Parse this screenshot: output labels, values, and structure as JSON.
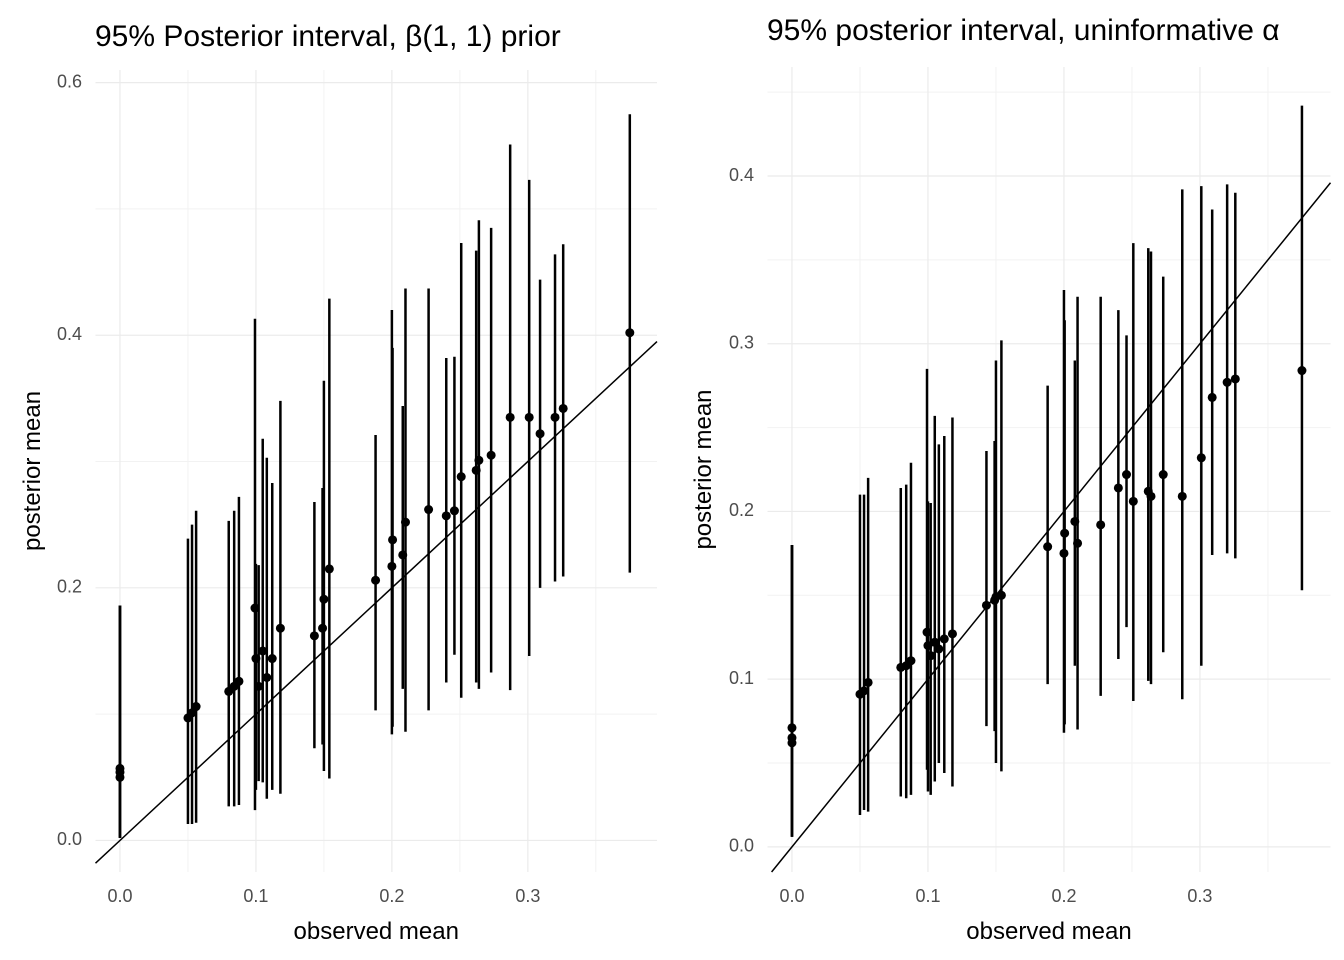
{
  "chart_data": [
    {
      "type": "errorbar",
      "title": "95% Posterior interval, β(1, 1) prior",
      "x_label": "observed mean",
      "y_label": "posterior mean",
      "color": "#000000",
      "grid": true,
      "minor_grid": true,
      "identity_line": true,
      "xlim": [
        -0.018,
        0.395
      ],
      "ylim": [
        -0.025,
        0.61
      ],
      "xticks": [
        {
          "value": 0,
          "label": "0.0"
        },
        0.1,
        0.2,
        0.3
      ],
      "yticks": [
        {
          "value": 0,
          "label": "0.0"
        },
        0.2,
        0.4,
        0.6
      ],
      "x": [
        0,
        0,
        0,
        0.05,
        0.053,
        0.056,
        0.08,
        0.084,
        0.0875,
        0.0993,
        0.1,
        0.102,
        0.105,
        0.108,
        0.112,
        0.118,
        0.143,
        0.149,
        0.15,
        0.154,
        0.188,
        0.2,
        0.2005,
        0.208,
        0.21,
        0.227,
        0.24,
        0.246,
        0.251,
        0.262,
        0.264,
        0.273,
        0.287,
        0.301,
        0.309,
        0.32,
        0.326,
        0.375
      ],
      "values": [
        0.057,
        0.054,
        0.05,
        0.097,
        0.101,
        0.106,
        0.118,
        0.122,
        0.126,
        0.184,
        0.144,
        0.122,
        0.15,
        0.129,
        0.144,
        0.168,
        0.162,
        0.168,
        0.191,
        0.215,
        0.206,
        0.217,
        0.238,
        0.226,
        0.252,
        0.262,
        0.257,
        0.261,
        0.288,
        0.293,
        0.301,
        0.305,
        0.335,
        0.335,
        0.322,
        0.335,
        0.342,
        0.402
      ],
      "lower": [
        0.002,
        0.002,
        0.002,
        0.013,
        0.013,
        0.014,
        0.027,
        0.027,
        0.028,
        0.024,
        0.04,
        0.047,
        0.046,
        0.033,
        0.04,
        0.037,
        0.073,
        0.076,
        0.055,
        0.049,
        0.103,
        0.084,
        0.09,
        0.12,
        0.086,
        0.103,
        0.125,
        0.147,
        0.113,
        0.125,
        0.12,
        0.133,
        0.119,
        0.146,
        0.2,
        0.205,
        0.209,
        0.212
      ],
      "upper": [
        0.186,
        0.186,
        0.186,
        0.239,
        0.25,
        0.261,
        0.253,
        0.261,
        0.272,
        0.413,
        0.219,
        0.218,
        0.318,
        0.303,
        0.283,
        0.348,
        0.268,
        0.279,
        0.364,
        0.429,
        0.321,
        0.42,
        0.39,
        0.344,
        0.437,
        0.437,
        0.382,
        0.383,
        0.473,
        0.467,
        0.491,
        0.485,
        0.551,
        0.523,
        0.444,
        0.464,
        0.472,
        0.575
      ]
    },
    {
      "type": "errorbar",
      "title": "95% posterior interval, uninformative α",
      "x_label": "observed mean",
      "y_label": "posterior mean",
      "color": "#000000",
      "grid": true,
      "minor_grid": true,
      "identity_line": true,
      "xlim": [
        -0.018,
        0.396
      ],
      "ylim": [
        -0.015,
        0.465
      ],
      "xticks": [
        {
          "value": 0,
          "label": "0.0"
        },
        0.1,
        0.2,
        0.3
      ],
      "yticks": [
        {
          "value": 0,
          "label": "0.0"
        },
        0.1,
        0.2,
        0.3,
        0.4
      ],
      "x": [
        0,
        0,
        0,
        0.05,
        0.053,
        0.056,
        0.08,
        0.084,
        0.0875,
        0.0993,
        0.1,
        0.102,
        0.105,
        0.108,
        0.112,
        0.118,
        0.143,
        0.149,
        0.15,
        0.154,
        0.188,
        0.2,
        0.2005,
        0.208,
        0.21,
        0.227,
        0.24,
        0.246,
        0.251,
        0.262,
        0.264,
        0.273,
        0.287,
        0.301,
        0.309,
        0.32,
        0.326,
        0.375
      ],
      "values": [
        0.071,
        0.065,
        0.062,
        0.091,
        0.093,
        0.098,
        0.107,
        0.108,
        0.111,
        0.128,
        0.12,
        0.114,
        0.122,
        0.118,
        0.124,
        0.127,
        0.144,
        0.147,
        0.149,
        0.15,
        0.179,
        0.175,
        0.187,
        0.194,
        0.181,
        0.192,
        0.214,
        0.222,
        0.206,
        0.212,
        0.209,
        0.222,
        0.209,
        0.232,
        0.268,
        0.277,
        0.279,
        0.284
      ],
      "lower": [
        0.006,
        0.006,
        0.006,
        0.019,
        0.022,
        0.021,
        0.03,
        0.029,
        0.031,
        0.046,
        0.033,
        0.031,
        0.039,
        0.05,
        0.044,
        0.036,
        0.072,
        0.069,
        0.05,
        0.045,
        0.097,
        0.068,
        0.073,
        0.108,
        0.07,
        0.09,
        0.112,
        0.131,
        0.087,
        0.099,
        0.097,
        0.116,
        0.088,
        0.108,
        0.174,
        0.175,
        0.172,
        0.153
      ],
      "upper": [
        0.18,
        0.18,
        0.18,
        0.21,
        0.21,
        0.22,
        0.214,
        0.216,
        0.229,
        0.285,
        0.206,
        0.205,
        0.257,
        0.24,
        0.245,
        0.256,
        0.236,
        0.242,
        0.29,
        0.302,
        0.275,
        0.332,
        0.314,
        0.29,
        0.328,
        0.328,
        0.32,
        0.305,
        0.36,
        0.357,
        0.355,
        0.34,
        0.392,
        0.394,
        0.38,
        0.395,
        0.39,
        0.442
      ]
    }
  ]
}
